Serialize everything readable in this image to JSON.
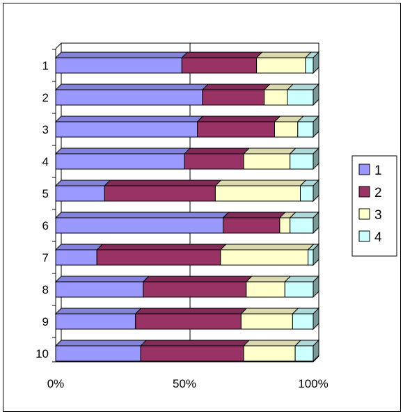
{
  "chart_data": {
    "type": "bar",
    "orientation": "horizontal",
    "stacked": "percent",
    "style": "3d",
    "title": "",
    "xlabel": "",
    "ylabel": "",
    "categories": [
      "1",
      "2",
      "3",
      "4",
      "5",
      "6",
      "7",
      "8",
      "9",
      "10"
    ],
    "x_ticks": [
      "0%",
      "50%",
      "100%"
    ],
    "xlim": [
      0,
      100
    ],
    "grid": true,
    "legend_position": "right",
    "series": [
      {
        "name": "1",
        "color": "#9999FF",
        "values": [
          49,
          57,
          55,
          50,
          19,
          65,
          16,
          34,
          31,
          33
        ]
      },
      {
        "name": "2",
        "color": "#993366",
        "values": [
          29,
          24,
          30,
          23,
          43,
          22,
          48,
          40,
          41,
          40
        ]
      },
      {
        "name": "3",
        "color": "#FFFFCC",
        "values": [
          19,
          9,
          9,
          18,
          33,
          4,
          34,
          15,
          20,
          20
        ]
      },
      {
        "name": "4",
        "color": "#CCFFFF",
        "values": [
          3,
          10,
          6,
          9,
          5,
          9,
          2,
          11,
          8,
          7
        ]
      }
    ]
  }
}
